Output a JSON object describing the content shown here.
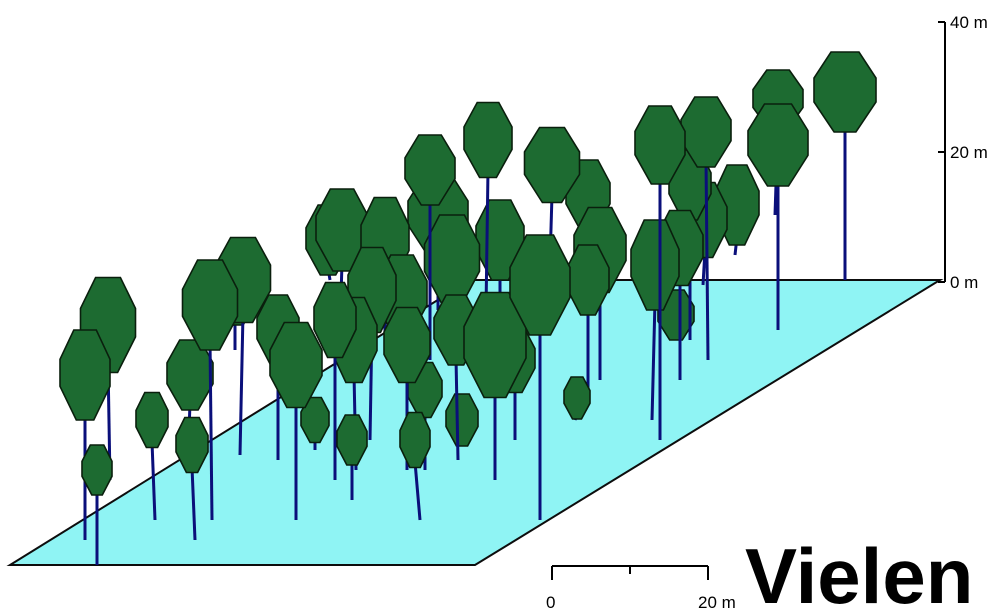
{
  "colors": {
    "ground": "#8ff4f4",
    "ground_edge": "#0d0d0d",
    "crown": "#1d6b31",
    "crown_edge": "#0a1f0d",
    "trunk": "#0a0f7a",
    "axis": "#000000"
  },
  "height_axis": {
    "ticks": [
      {
        "label": "40 m",
        "value": 40
      },
      {
        "label": "20 m",
        "value": 20
      },
      {
        "label": "0 m",
        "value": 0
      }
    ]
  },
  "scale_bar": {
    "start_label": "0",
    "end_label": "20 m",
    "length_m": 20
  },
  "caption": {
    "text": "Vielen"
  }
}
